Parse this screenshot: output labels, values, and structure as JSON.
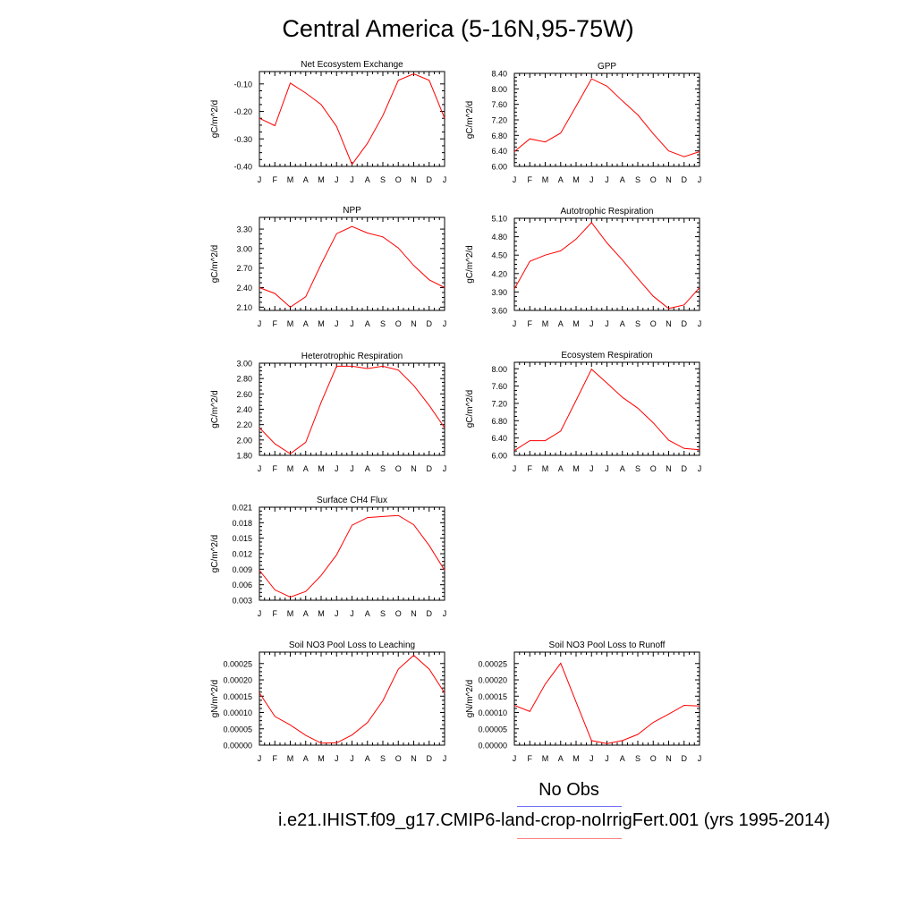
{
  "title": "Central America (5-16N,95-75W)",
  "legend": {
    "obs_label": "No Obs",
    "case_label": "i.e21.IHIST.f09_g17.CMIP6-land-crop-noIrrigFert.001 (yrs 1995-2014)",
    "colors": {
      "obs": "#6f6fff",
      "case": "#ff0000"
    }
  },
  "chart_data": [
    {
      "type": "line",
      "title": "Net Ecosystem Exchange",
      "ylabel": "gC/m^2/d",
      "categories": [
        "J",
        "F",
        "M",
        "A",
        "M",
        "J",
        "J",
        "A",
        "S",
        "O",
        "N",
        "D",
        "J"
      ],
      "ylim": [
        -0.4,
        -0.055
      ],
      "yticks": [
        -0.4,
        -0.3,
        -0.2,
        -0.1
      ],
      "ytick_labels": [
        "-0.40",
        "-0.30",
        "-0.20",
        "-0.10"
      ],
      "series": [
        {
          "color": "#ff0000",
          "values": [
            -0.225,
            -0.252,
            -0.097,
            -0.133,
            -0.175,
            -0.255,
            -0.393,
            -0.316,
            -0.215,
            -0.087,
            -0.063,
            -0.087,
            -0.225
          ]
        }
      ]
    },
    {
      "type": "line",
      "title": "GPP",
      "ylabel": "gC/m^2/d",
      "categories": [
        "J",
        "F",
        "M",
        "A",
        "M",
        "J",
        "J",
        "A",
        "S",
        "O",
        "N",
        "D",
        "J"
      ],
      "ylim": [
        6.0,
        8.4
      ],
      "yticks": [
        6.0,
        6.4,
        6.8,
        7.2,
        7.6,
        8.0,
        8.4
      ],
      "ytick_labels": [
        "6.00",
        "6.40",
        "6.80",
        "7.20",
        "7.60",
        "8.00",
        "8.40"
      ],
      "series": [
        {
          "color": "#ff0000",
          "values": [
            6.38,
            6.71,
            6.63,
            6.86,
            7.55,
            8.26,
            8.07,
            7.69,
            7.33,
            6.84,
            6.4,
            6.25,
            6.38
          ]
        }
      ]
    },
    {
      "type": "line",
      "title": "NPP",
      "ylabel": "gC/m^2/d",
      "categories": [
        "J",
        "F",
        "M",
        "A",
        "M",
        "J",
        "J",
        "A",
        "S",
        "O",
        "N",
        "D",
        "J"
      ],
      "ylim": [
        2.05,
        3.48
      ],
      "yticks": [
        2.1,
        2.4,
        2.7,
        3.0,
        3.3
      ],
      "ytick_labels": [
        "2.10",
        "2.40",
        "2.70",
        "3.00",
        "3.30"
      ],
      "series": [
        {
          "color": "#ff0000",
          "values": [
            2.4,
            2.31,
            2.1,
            2.26,
            2.76,
            3.23,
            3.34,
            3.24,
            3.18,
            3.01,
            2.74,
            2.52,
            2.4
          ]
        }
      ]
    },
    {
      "type": "line",
      "title": "Autotrophic Respiration",
      "ylabel": "gC/m^2/d",
      "categories": [
        "J",
        "F",
        "M",
        "A",
        "M",
        "J",
        "J",
        "A",
        "S",
        "O",
        "N",
        "D",
        "J"
      ],
      "ylim": [
        3.6,
        5.1
      ],
      "yticks": [
        3.6,
        3.9,
        4.2,
        4.5,
        4.8,
        5.1
      ],
      "ytick_labels": [
        "3.60",
        "3.90",
        "4.20",
        "4.50",
        "4.80",
        "5.10"
      ],
      "series": [
        {
          "color": "#ff0000",
          "values": [
            3.95,
            4.4,
            4.5,
            4.57,
            4.76,
            5.03,
            4.7,
            4.42,
            4.12,
            3.83,
            3.63,
            3.69,
            3.97
          ]
        }
      ]
    },
    {
      "type": "line",
      "title": "Heterotrophic Respiration",
      "ylabel": "gC/m^2/d",
      "categories": [
        "J",
        "F",
        "M",
        "A",
        "M",
        "J",
        "J",
        "A",
        "S",
        "O",
        "N",
        "D",
        "J"
      ],
      "ylim": [
        1.8,
        3.0
      ],
      "yticks": [
        1.8,
        2.0,
        2.2,
        2.4,
        2.6,
        2.8,
        3.0
      ],
      "ytick_labels": [
        "1.80",
        "2.00",
        "2.20",
        "2.40",
        "2.60",
        "2.80",
        "3.00"
      ],
      "series": [
        {
          "color": "#ff0000",
          "values": [
            2.16,
            1.95,
            1.82,
            1.97,
            2.49,
            2.96,
            2.96,
            2.93,
            2.96,
            2.91,
            2.71,
            2.45,
            2.16
          ]
        }
      ]
    },
    {
      "type": "line",
      "title": "Ecosystem Respiration",
      "ylabel": "gC/m^2/d",
      "categories": [
        "J",
        "F",
        "M",
        "A",
        "M",
        "J",
        "J",
        "A",
        "S",
        "O",
        "N",
        "D",
        "J"
      ],
      "ylim": [
        6.0,
        8.15
      ],
      "yticks": [
        6.0,
        6.4,
        6.8,
        7.2,
        7.6,
        8.0
      ],
      "ytick_labels": [
        "6.00",
        "6.40",
        "6.80",
        "7.20",
        "7.60",
        "8.00"
      ],
      "series": [
        {
          "color": "#ff0000",
          "values": [
            6.11,
            6.34,
            6.34,
            6.56,
            7.27,
            7.99,
            7.67,
            7.34,
            7.09,
            6.75,
            6.35,
            6.16,
            6.13
          ]
        }
      ]
    },
    {
      "type": "line",
      "title": "Surface CH4 Flux",
      "ylabel": "gC/m^2/d",
      "categories": [
        "J",
        "F",
        "M",
        "A",
        "M",
        "J",
        "J",
        "A",
        "S",
        "O",
        "N",
        "D",
        "J"
      ],
      "ylim": [
        0.003,
        0.021
      ],
      "yticks": [
        0.003,
        0.006,
        0.009,
        0.012,
        0.015,
        0.018,
        0.021
      ],
      "ytick_labels": [
        "0.003",
        "0.006",
        "0.009",
        "0.012",
        "0.015",
        "0.018",
        "0.021"
      ],
      "series": [
        {
          "color": "#ff0000",
          "values": [
            0.0088,
            0.005,
            0.0036,
            0.0047,
            0.0078,
            0.0118,
            0.0175,
            0.019,
            0.0192,
            0.0194,
            0.0176,
            0.0136,
            0.0088
          ]
        }
      ]
    },
    {
      "type": "line",
      "title": "Soil NO3 Pool Loss to Leaching",
      "ylabel": "gN/m^2/d",
      "categories": [
        "J",
        "F",
        "M",
        "A",
        "M",
        "J",
        "J",
        "A",
        "S",
        "O",
        "N",
        "D",
        "J"
      ],
      "ylim": [
        0,
        0.000285
      ],
      "yticks": [
        0,
        5e-05,
        0.0001,
        0.00015,
        0.0002,
        0.00025
      ],
      "ytick_labels": [
        "0.00000",
        "0.00005",
        "0.00010",
        "0.00015",
        "0.00020",
        "0.00025"
      ],
      "series": [
        {
          "color": "#ff0000",
          "values": [
            0.00016,
            8.8e-05,
            6.2e-05,
            3e-05,
            6e-06,
            7e-06,
            3.1e-05,
            6.9e-05,
            0.000136,
            0.000233,
            0.000275,
            0.000233,
            0.00016
          ]
        }
      ]
    },
    {
      "type": "line",
      "title": "Soil NO3 Pool Loss to Runoff",
      "ylabel": "gN/m^2/d",
      "categories": [
        "J",
        "F",
        "M",
        "A",
        "M",
        "J",
        "J",
        "A",
        "S",
        "O",
        "N",
        "D",
        "J"
      ],
      "ylim": [
        0,
        0.000285
      ],
      "yticks": [
        0,
        5e-05,
        0.0001,
        0.00015,
        0.0002,
        0.00025
      ],
      "ytick_labels": [
        "0.00000",
        "0.00005",
        "0.00010",
        "0.00015",
        "0.00020",
        "0.00025"
      ],
      "series": [
        {
          "color": "#ff0000",
          "values": [
            0.000122,
            0.000103,
            0.000187,
            0.000251,
            0.000132,
            1.4e-05,
            5e-06,
            1.4e-05,
            3.3e-05,
            7e-05,
            9.5e-05,
            0.000122,
            0.00012
          ]
        }
      ]
    }
  ]
}
